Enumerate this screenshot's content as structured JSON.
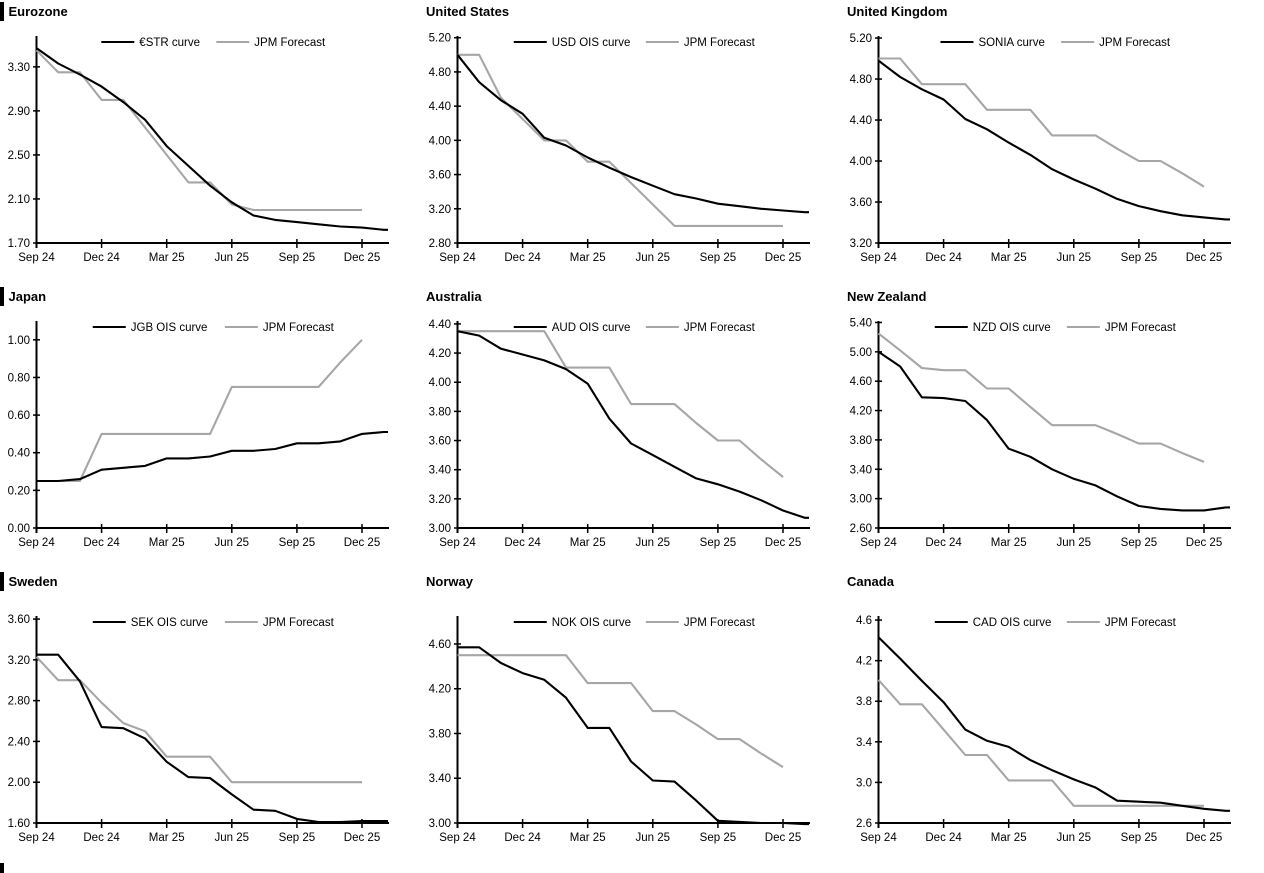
{
  "colors": {
    "market": "#000000",
    "forecast": "#a6a6a6",
    "axis": "#000000",
    "background": "#ffffff"
  },
  "x_axis": {
    "tick_labels": [
      "Sep 24",
      "Dec 24",
      "Mar 25",
      "Jun 25",
      "Sep 25",
      "Dec 25"
    ],
    "tick_months": [
      0,
      3,
      6,
      9,
      12,
      15
    ],
    "monthly_categories": [
      "Sep 24",
      "Oct 24",
      "Nov 24",
      "Dec 24",
      "Jan 25",
      "Feb 25",
      "Mar 25",
      "Apr 25",
      "May 25",
      "Jun 25",
      "Jul 25",
      "Aug 25",
      "Sep 25",
      "Oct 25",
      "Nov 25",
      "Dec 25",
      "Jan 26"
    ]
  },
  "chart_data": [
    {
      "type": "line",
      "title": "Eurozone",
      "section_bar": true,
      "ylim": [
        1.7,
        3.58
      ],
      "y_ticks": [
        1.7,
        2.1,
        2.5,
        2.9,
        3.3
      ],
      "y_decimals": 2,
      "legend_position": "top",
      "grid": false,
      "series": [
        {
          "name": "€STR curve",
          "role": "market",
          "values": [
            3.47,
            3.33,
            3.23,
            3.12,
            2.98,
            2.82,
            2.58,
            2.4,
            2.22,
            2.07,
            1.95,
            1.91,
            1.89,
            1.87,
            1.85,
            1.84,
            1.82
          ]
        },
        {
          "name": "JPM Forecast",
          "role": "forecast",
          "values": [
            3.45,
            3.25,
            3.25,
            3.0,
            3.0,
            2.75,
            2.5,
            2.25,
            2.25,
            2.05,
            2.0,
            2.0,
            2.0,
            2.0,
            2.0,
            2.0
          ]
        }
      ]
    },
    {
      "type": "line",
      "title": "United States",
      "section_bar": false,
      "ylim": [
        2.8,
        5.22
      ],
      "y_ticks": [
        2.8,
        3.2,
        3.6,
        4.0,
        4.4,
        4.8,
        5.2
      ],
      "y_decimals": 2,
      "legend_position": "top",
      "grid": false,
      "series": [
        {
          "name": "USD OIS curve",
          "role": "market",
          "values": [
            5.0,
            4.68,
            4.47,
            4.31,
            4.03,
            3.94,
            3.8,
            3.68,
            3.57,
            3.47,
            3.37,
            3.32,
            3.26,
            3.23,
            3.2,
            3.18,
            3.16
          ]
        },
        {
          "name": "JPM Forecast",
          "role": "forecast",
          "values": [
            5.0,
            5.0,
            4.5,
            4.25,
            4.0,
            4.0,
            3.75,
            3.75,
            3.5,
            3.25,
            3.0,
            3.0,
            3.0,
            3.0,
            3.0,
            3.0
          ]
        }
      ]
    },
    {
      "type": "line",
      "title": "United Kingdom",
      "section_bar": false,
      "ylim": [
        3.2,
        5.22
      ],
      "y_ticks": [
        3.2,
        3.6,
        4.0,
        4.4,
        4.8,
        5.2
      ],
      "y_decimals": 2,
      "legend_position": "top",
      "grid": false,
      "series": [
        {
          "name": "SONIA curve",
          "role": "market",
          "values": [
            4.98,
            4.82,
            4.7,
            4.6,
            4.41,
            4.31,
            4.18,
            4.06,
            3.92,
            3.82,
            3.73,
            3.63,
            3.56,
            3.51,
            3.47,
            3.45,
            3.43
          ]
        },
        {
          "name": "JPM Forecast",
          "role": "forecast",
          "values": [
            5.0,
            5.0,
            4.75,
            4.75,
            4.75,
            4.5,
            4.5,
            4.5,
            4.25,
            4.25,
            4.25,
            4.12,
            4.0,
            4.0,
            3.88,
            3.75
          ]
        }
      ]
    },
    {
      "type": "line",
      "title": "Japan",
      "section_bar": true,
      "ylim": [
        0.0,
        1.1
      ],
      "y_ticks": [
        0.0,
        0.2,
        0.4,
        0.6,
        0.8,
        1.0
      ],
      "y_decimals": 2,
      "legend_position": "top",
      "grid": false,
      "series": [
        {
          "name": "JGB OIS curve",
          "role": "market",
          "values": [
            0.25,
            0.25,
            0.26,
            0.31,
            0.32,
            0.33,
            0.37,
            0.37,
            0.38,
            0.41,
            0.41,
            0.42,
            0.45,
            0.45,
            0.46,
            0.5,
            0.51
          ]
        },
        {
          "name": "JPM Forecast",
          "role": "forecast",
          "values": [
            0.25,
            0.25,
            0.25,
            0.5,
            0.5,
            0.5,
            0.5,
            0.5,
            0.5,
            0.75,
            0.75,
            0.75,
            0.75,
            0.75,
            0.88,
            1.0
          ]
        }
      ]
    },
    {
      "type": "line",
      "title": "Australia",
      "section_bar": false,
      "ylim": [
        3.0,
        4.42
      ],
      "y_ticks": [
        3.0,
        3.2,
        3.4,
        3.6,
        3.8,
        4.0,
        4.2,
        4.4
      ],
      "y_decimals": 2,
      "legend_position": "top",
      "grid": false,
      "series": [
        {
          "name": "AUD OIS curve",
          "role": "market",
          "values": [
            4.35,
            4.32,
            4.23,
            4.19,
            4.15,
            4.09,
            3.99,
            3.75,
            3.58,
            3.5,
            3.42,
            3.34,
            3.3,
            3.25,
            3.19,
            3.12,
            3.07
          ]
        },
        {
          "name": "JPM Forecast",
          "role": "forecast",
          "values": [
            4.35,
            4.35,
            4.35,
            4.35,
            4.35,
            4.1,
            4.1,
            4.1,
            3.85,
            3.85,
            3.85,
            3.72,
            3.6,
            3.6,
            3.47,
            3.35
          ]
        }
      ]
    },
    {
      "type": "line",
      "title": "New Zealand",
      "section_bar": false,
      "ylim": [
        2.6,
        5.42
      ],
      "y_ticks": [
        2.6,
        3.0,
        3.4,
        3.8,
        4.2,
        4.6,
        5.0,
        5.4
      ],
      "y_decimals": 2,
      "legend_position": "top",
      "grid": false,
      "series": [
        {
          "name": "NZD OIS curve",
          "role": "market",
          "values": [
            5.0,
            4.8,
            4.38,
            4.37,
            4.33,
            4.07,
            3.68,
            3.57,
            3.4,
            3.27,
            3.18,
            3.03,
            2.9,
            2.86,
            2.84,
            2.84,
            2.88
          ]
        },
        {
          "name": "JPM Forecast",
          "role": "forecast",
          "values": [
            5.25,
            5.02,
            4.78,
            4.75,
            4.75,
            4.5,
            4.5,
            4.25,
            4.0,
            4.0,
            4.0,
            3.88,
            3.75,
            3.75,
            3.62,
            3.5
          ]
        }
      ]
    },
    {
      "type": "line",
      "title": "Sweden",
      "section_bar": true,
      "ylim": [
        1.6,
        3.63
      ],
      "y_ticks": [
        1.6,
        2.0,
        2.4,
        2.8,
        3.2,
        3.6
      ],
      "y_decimals": 2,
      "legend_position": "top",
      "grid": false,
      "series": [
        {
          "name": "SEK OIS curve",
          "role": "market",
          "values": [
            3.25,
            3.25,
            2.99,
            2.54,
            2.53,
            2.43,
            2.2,
            2.05,
            2.04,
            1.88,
            1.73,
            1.72,
            1.64,
            1.61,
            1.61,
            1.62,
            1.62
          ]
        },
        {
          "name": "JPM Forecast",
          "role": "forecast",
          "values": [
            3.23,
            3.0,
            3.0,
            2.78,
            2.58,
            2.5,
            2.25,
            2.25,
            2.25,
            2.0,
            2.0,
            2.0,
            2.0,
            2.0,
            2.0,
            2.0
          ]
        }
      ]
    },
    {
      "type": "line",
      "title": "Norway",
      "section_bar": false,
      "ylim": [
        3.0,
        4.85
      ],
      "y_ticks": [
        3.0,
        3.4,
        3.8,
        4.2,
        4.6
      ],
      "y_decimals": 2,
      "legend_position": "top",
      "grid": false,
      "series": [
        {
          "name": "NOK OIS curve",
          "role": "market",
          "values": [
            4.57,
            4.57,
            4.43,
            4.34,
            4.28,
            4.12,
            3.85,
            3.85,
            3.55,
            3.38,
            3.37,
            3.2,
            3.02,
            3.01,
            3.0,
            3.0,
            2.99
          ]
        },
        {
          "name": "JPM Forecast",
          "role": "forecast",
          "values": [
            4.5,
            4.5,
            4.5,
            4.5,
            4.5,
            4.5,
            4.25,
            4.25,
            4.25,
            4.0,
            4.0,
            3.88,
            3.75,
            3.75,
            3.62,
            3.5
          ]
        }
      ]
    },
    {
      "type": "line",
      "title": "Canada",
      "section_bar": false,
      "ylim": [
        2.6,
        4.64
      ],
      "y_ticks": [
        2.6,
        3.0,
        3.4,
        3.8,
        4.2,
        4.6
      ],
      "y_decimals": 1,
      "legend_position": "top",
      "grid": false,
      "series": [
        {
          "name": "CAD OIS curve",
          "role": "market",
          "values": [
            4.43,
            4.22,
            4.0,
            3.79,
            3.52,
            3.41,
            3.35,
            3.22,
            3.12,
            3.03,
            2.95,
            2.82,
            2.81,
            2.8,
            2.77,
            2.74,
            2.72
          ]
        },
        {
          "name": "JPM Forecast",
          "role": "forecast",
          "values": [
            4.01,
            3.77,
            3.77,
            3.52,
            3.27,
            3.27,
            3.02,
            3.02,
            3.02,
            2.77,
            2.77,
            2.77,
            2.77,
            2.77,
            2.77,
            2.77
          ]
        }
      ]
    }
  ]
}
